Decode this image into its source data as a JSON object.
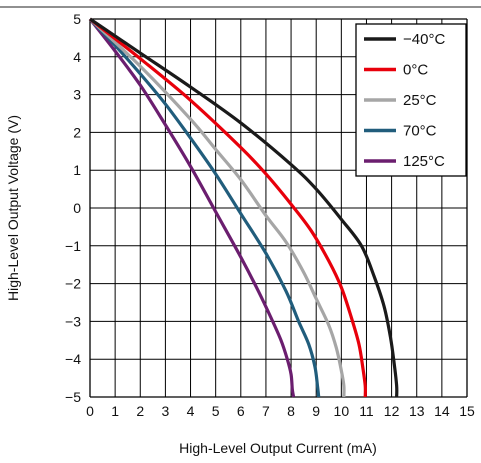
{
  "chart_data": {
    "type": "line",
    "xlabel": "High-Level Output Current (mA)",
    "ylabel": "High-Level Output Voltage (V)",
    "xlim": [
      0,
      15
    ],
    "ylim": [
      -5,
      5
    ],
    "x_ticks": [
      "0",
      "1",
      "2",
      "3",
      "4",
      "5",
      "6",
      "7",
      "8",
      "9",
      "10",
      "11",
      "12",
      "13",
      "14",
      "15"
    ],
    "y_ticks": [
      "5",
      "4",
      "3",
      "2",
      "1",
      "0",
      "−1",
      "−2",
      "−3",
      "−4",
      "−5"
    ],
    "grid": true,
    "legend_position": "top-right",
    "series": [
      {
        "name": "−40°C",
        "color": "#1a1a1a",
        "x": [
          0,
          2,
          4,
          6,
          8,
          9,
          10,
          10.8,
          11.3,
          11.7,
          11.95,
          12.1,
          12.2,
          12.2
        ],
        "y": [
          5,
          4.1,
          3.2,
          2.25,
          1.15,
          0.5,
          -0.3,
          -1,
          -1.8,
          -2.6,
          -3.4,
          -4.1,
          -4.7,
          -5
        ]
      },
      {
        "name": "0°C",
        "color": "#e8000b",
        "x": [
          0,
          2,
          4,
          6,
          7,
          8,
          8.8,
          9.5,
          10,
          10.4,
          10.7,
          10.85,
          10.95,
          10.95
        ],
        "y": [
          5,
          3.95,
          2.85,
          1.6,
          0.9,
          0.1,
          -0.6,
          -1.4,
          -2.1,
          -2.9,
          -3.6,
          -4.2,
          -4.7,
          -5
        ]
      },
      {
        "name": "25°C",
        "color": "#a6a6a6",
        "x": [
          0,
          2,
          4,
          5,
          6,
          7,
          7.8,
          8.5,
          9,
          9.5,
          9.8,
          10,
          10.1,
          10.1
        ],
        "y": [
          5,
          3.75,
          2.35,
          1.55,
          0.75,
          -0.2,
          -0.9,
          -1.7,
          -2.4,
          -3.1,
          -3.7,
          -4.3,
          -4.7,
          -5
        ]
      },
      {
        "name": "70°C",
        "color": "#215d7c",
        "x": [
          0,
          1,
          2,
          3,
          4,
          5,
          6,
          7,
          7.8,
          8.3,
          8.7,
          8.95,
          9.05,
          9.1
        ],
        "y": [
          5,
          4.3,
          3.55,
          2.75,
          1.85,
          0.9,
          -0.15,
          -1.2,
          -2.2,
          -3,
          -3.6,
          -4.2,
          -4.7,
          -5
        ]
      },
      {
        "name": "125°C",
        "color": "#6b1e6f",
        "x": [
          0,
          1,
          2,
          3,
          4,
          5,
          6,
          6.7,
          7.2,
          7.6,
          7.85,
          8,
          8.05,
          8.1
        ],
        "y": [
          5,
          4.15,
          3.25,
          2.2,
          1.1,
          -0.1,
          -1.3,
          -2.2,
          -2.9,
          -3.5,
          -4,
          -4.4,
          -4.8,
          -5
        ]
      }
    ]
  }
}
